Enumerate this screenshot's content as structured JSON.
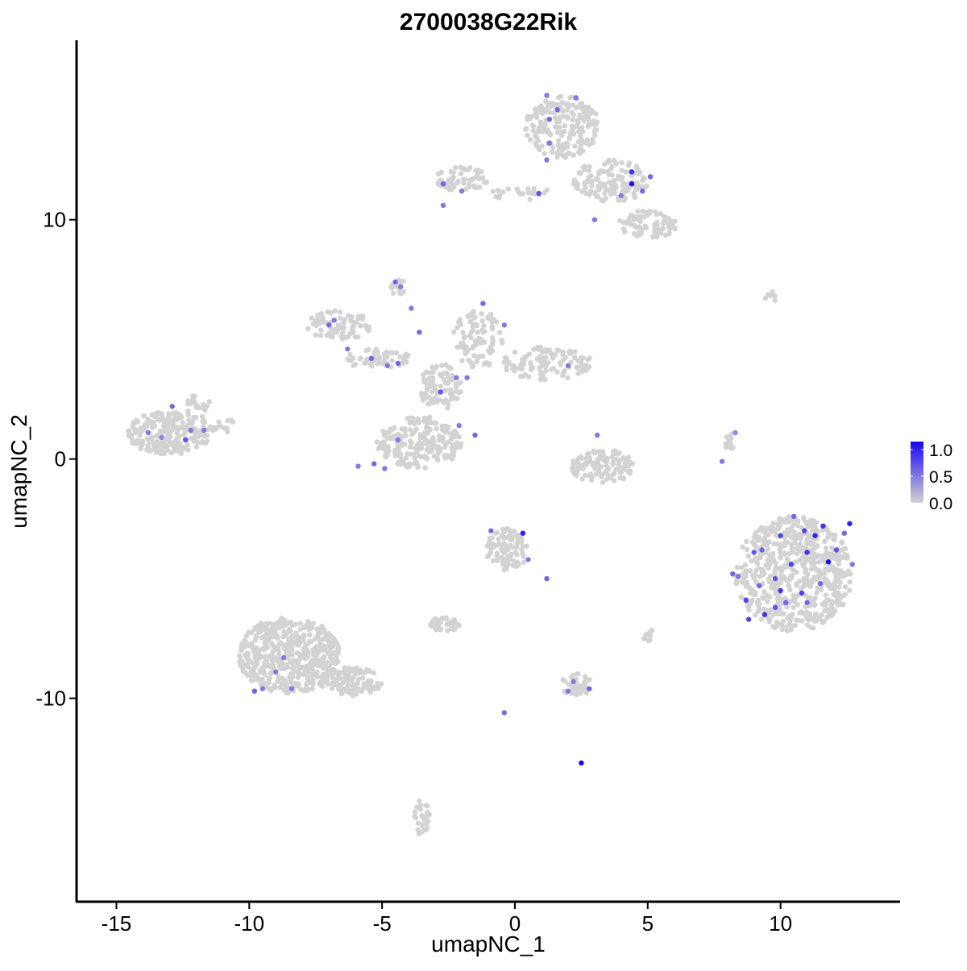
{
  "chart_data": {
    "type": "scatter",
    "title": "2700038G22Rik",
    "xlabel": "umapNC_1",
    "ylabel": "umapNC_2",
    "xlim": [
      -16.5,
      14.5
    ],
    "ylim": [
      -18.5,
      17.5
    ],
    "xticks": [
      -15,
      -10,
      -5,
      0,
      5,
      10
    ],
    "yticks": [
      -10,
      0,
      10
    ],
    "grid": false,
    "colorbar": {
      "low_color": "#d3d3d3",
      "high_color": "#1a05f5",
      "min": 0.0,
      "max": 1.15,
      "ticks": [
        0.0,
        0.5,
        1.0
      ],
      "tick_labels": [
        "0.0",
        "0.5",
        "1.0"
      ],
      "position": "right"
    },
    "clusters": [
      {
        "cx": -13.0,
        "cy": 1.1,
        "rx": 1.6,
        "ry": 0.9,
        "n": 240
      },
      {
        "cx": -11.9,
        "cy": 2.2,
        "rx": 0.5,
        "ry": 0.5,
        "n": 20
      },
      {
        "cx": -11.0,
        "cy": 1.4,
        "rx": 0.6,
        "ry": 0.3,
        "n": 12
      },
      {
        "cx": -3.6,
        "cy": 0.7,
        "rx": 1.6,
        "ry": 1.1,
        "n": 210
      },
      {
        "cx": -2.8,
        "cy": 3.0,
        "rx": 0.8,
        "ry": 1.0,
        "n": 90
      },
      {
        "cx": -5.2,
        "cy": 4.2,
        "rx": 1.3,
        "ry": 0.4,
        "n": 60
      },
      {
        "cx": -6.6,
        "cy": 5.6,
        "rx": 1.3,
        "ry": 0.6,
        "n": 80
      },
      {
        "cx": -1.4,
        "cy": 5.0,
        "rx": 1.0,
        "ry": 1.2,
        "n": 90
      },
      {
        "cx": 1.2,
        "cy": 4.0,
        "rx": 1.7,
        "ry": 0.7,
        "n": 110
      },
      {
        "cx": -4.4,
        "cy": 7.2,
        "rx": 0.3,
        "ry": 0.4,
        "n": 14
      },
      {
        "cx": 1.8,
        "cy": 13.9,
        "rx": 1.4,
        "ry": 1.3,
        "n": 200
      },
      {
        "cx": 3.6,
        "cy": 11.6,
        "rx": 1.4,
        "ry": 0.9,
        "n": 140
      },
      {
        "cx": 5.0,
        "cy": 9.8,
        "rx": 1.1,
        "ry": 0.6,
        "n": 80
      },
      {
        "cx": -2.0,
        "cy": 11.7,
        "rx": 1.0,
        "ry": 0.5,
        "n": 60
      },
      {
        "cx": 0.2,
        "cy": 11.1,
        "rx": 1.4,
        "ry": 0.3,
        "n": 25
      },
      {
        "cx": 3.3,
        "cy": -0.3,
        "rx": 1.2,
        "ry": 0.7,
        "n": 110
      },
      {
        "cx": 10.5,
        "cy": -4.8,
        "rx": 2.2,
        "ry": 2.4,
        "n": 600
      },
      {
        "cx": 8.1,
        "cy": 0.6,
        "rx": 0.2,
        "ry": 0.6,
        "n": 12
      },
      {
        "cx": -0.3,
        "cy": -3.8,
        "rx": 0.8,
        "ry": 0.9,
        "n": 90
      },
      {
        "cx": -2.6,
        "cy": -6.9,
        "rx": 0.6,
        "ry": 0.3,
        "n": 40
      },
      {
        "cx": 2.3,
        "cy": -9.4,
        "rx": 0.6,
        "ry": 0.5,
        "n": 40
      },
      {
        "cx": -8.5,
        "cy": -8.2,
        "rx": 1.9,
        "ry": 1.6,
        "n": 500
      },
      {
        "cx": -6.2,
        "cy": -9.3,
        "rx": 1.2,
        "ry": 0.6,
        "n": 120
      },
      {
        "cx": -3.5,
        "cy": -15.0,
        "rx": 0.3,
        "ry": 0.8,
        "n": 30
      },
      {
        "cx": 5.0,
        "cy": -7.3,
        "rx": 0.2,
        "ry": 0.3,
        "n": 12
      },
      {
        "cx": 9.5,
        "cy": 6.8,
        "rx": 0.6,
        "ry": 0.2,
        "n": 6
      }
    ],
    "expressing_points": [
      {
        "x": -12.9,
        "y": 2.2,
        "v": 0.6
      },
      {
        "x": -13.8,
        "y": 1.1,
        "v": 0.5
      },
      {
        "x": -12.4,
        "y": 0.8,
        "v": 0.7
      },
      {
        "x": -12.2,
        "y": 1.2,
        "v": 0.5
      },
      {
        "x": -13.3,
        "y": 0.9,
        "v": 0.4
      },
      {
        "x": -11.7,
        "y": 1.2,
        "v": 0.5
      },
      {
        "x": -4.5,
        "y": 7.4,
        "v": 0.6
      },
      {
        "x": -4.3,
        "y": 7.2,
        "v": 0.5
      },
      {
        "x": -3.9,
        "y": 6.3,
        "v": 0.5
      },
      {
        "x": -7.0,
        "y": 5.6,
        "v": 0.6
      },
      {
        "x": -6.8,
        "y": 5.8,
        "v": 0.5
      },
      {
        "x": -6.3,
        "y": 4.6,
        "v": 0.5
      },
      {
        "x": -5.4,
        "y": 4.2,
        "v": 0.6
      },
      {
        "x": -4.8,
        "y": 3.9,
        "v": 0.5
      },
      {
        "x": -4.4,
        "y": 4.0,
        "v": 0.6
      },
      {
        "x": -3.6,
        "y": 5.3,
        "v": 0.6
      },
      {
        "x": -2.8,
        "y": 2.8,
        "v": 0.7
      },
      {
        "x": -2.2,
        "y": 3.4,
        "v": 0.5
      },
      {
        "x": -1.8,
        "y": 3.4,
        "v": 0.5
      },
      {
        "x": -1.2,
        "y": 6.5,
        "v": 0.6
      },
      {
        "x": -0.4,
        "y": 5.6,
        "v": 0.5
      },
      {
        "x": 2.0,
        "y": 3.9,
        "v": 0.5
      },
      {
        "x": -1.5,
        "y": 1.0,
        "v": 0.6
      },
      {
        "x": -2.1,
        "y": 1.4,
        "v": 0.5
      },
      {
        "x": -5.9,
        "y": -0.3,
        "v": 0.5
      },
      {
        "x": -5.3,
        "y": -0.2,
        "v": 0.6
      },
      {
        "x": -4.9,
        "y": -0.4,
        "v": 0.5
      },
      {
        "x": -4.4,
        "y": 0.8,
        "v": 0.5
      },
      {
        "x": -2.7,
        "y": 11.5,
        "v": 0.6
      },
      {
        "x": -2.0,
        "y": 11.2,
        "v": 0.5
      },
      {
        "x": -2.7,
        "y": 10.6,
        "v": 0.5
      },
      {
        "x": 0.9,
        "y": 11.1,
        "v": 0.7
      },
      {
        "x": 1.3,
        "y": 14.2,
        "v": 0.6
      },
      {
        "x": 1.2,
        "y": 15.2,
        "v": 0.5
      },
      {
        "x": 1.6,
        "y": 14.6,
        "v": 0.6
      },
      {
        "x": 2.3,
        "y": 15.1,
        "v": 0.5
      },
      {
        "x": 1.3,
        "y": 13.2,
        "v": 0.5
      },
      {
        "x": 1.2,
        "y": 12.5,
        "v": 0.5
      },
      {
        "x": 4.4,
        "y": 12.0,
        "v": 0.9
      },
      {
        "x": 4.4,
        "y": 11.5,
        "v": 1.1
      },
      {
        "x": 5.1,
        "y": 11.8,
        "v": 0.6
      },
      {
        "x": 4.8,
        "y": 11.2,
        "v": 0.6
      },
      {
        "x": 4.0,
        "y": 11.0,
        "v": 0.5
      },
      {
        "x": 3.0,
        "y": 10.0,
        "v": 0.5
      },
      {
        "x": 3.1,
        "y": 1.0,
        "v": 0.5
      },
      {
        "x": 7.8,
        "y": -0.1,
        "v": 0.5
      },
      {
        "x": 8.3,
        "y": 1.1,
        "v": 0.4
      },
      {
        "x": 0.3,
        "y": -3.1,
        "v": 1.0
      },
      {
        "x": -0.9,
        "y": -3.0,
        "v": 0.6
      },
      {
        "x": 0.5,
        "y": -4.2,
        "v": 0.5
      },
      {
        "x": 1.2,
        "y": -5.0,
        "v": 0.6
      },
      {
        "x": -0.4,
        "y": -10.6,
        "v": 0.6
      },
      {
        "x": 2.5,
        "y": -12.7,
        "v": 1.15
      },
      {
        "x": 2.2,
        "y": -9.3,
        "v": 0.5
      },
      {
        "x": 2.8,
        "y": -9.6,
        "v": 0.6
      },
      {
        "x": 2.0,
        "y": -9.7,
        "v": 0.5
      },
      {
        "x": -9.0,
        "y": -8.9,
        "v": 0.5
      },
      {
        "x": -9.8,
        "y": -9.7,
        "v": 0.6
      },
      {
        "x": -9.5,
        "y": -9.6,
        "v": 0.5
      },
      {
        "x": -8.4,
        "y": -9.6,
        "v": 0.5
      },
      {
        "x": -8.7,
        "y": -8.3,
        "v": 0.5
      },
      {
        "x": 9.3,
        "y": -3.8,
        "v": 0.6
      },
      {
        "x": 9.0,
        "y": -3.9,
        "v": 0.7
      },
      {
        "x": 10.0,
        "y": -3.2,
        "v": 0.8
      },
      {
        "x": 10.9,
        "y": -3.0,
        "v": 0.8
      },
      {
        "x": 11.6,
        "y": -2.8,
        "v": 0.9
      },
      {
        "x": 11.3,
        "y": -3.2,
        "v": 1.0
      },
      {
        "x": 12.6,
        "y": -2.7,
        "v": 1.0
      },
      {
        "x": 12.4,
        "y": -3.1,
        "v": 0.6
      },
      {
        "x": 11.0,
        "y": -3.9,
        "v": 0.9
      },
      {
        "x": 10.4,
        "y": -4.4,
        "v": 0.8
      },
      {
        "x": 9.8,
        "y": -5.0,
        "v": 0.7
      },
      {
        "x": 10.0,
        "y": -5.5,
        "v": 0.9
      },
      {
        "x": 9.2,
        "y": -5.3,
        "v": 0.6
      },
      {
        "x": 10.8,
        "y": -5.6,
        "v": 0.8
      },
      {
        "x": 11.8,
        "y": -4.3,
        "v": 1.1
      },
      {
        "x": 12.1,
        "y": -3.8,
        "v": 0.7
      },
      {
        "x": 11.5,
        "y": -5.2,
        "v": 0.6
      },
      {
        "x": 9.4,
        "y": -6.5,
        "v": 0.9
      },
      {
        "x": 9.8,
        "y": -6.2,
        "v": 0.7
      },
      {
        "x": 10.2,
        "y": -6.0,
        "v": 0.6
      },
      {
        "x": 8.2,
        "y": -4.8,
        "v": 0.6
      },
      {
        "x": 8.4,
        "y": -4.9,
        "v": 0.5
      },
      {
        "x": 8.7,
        "y": -5.9,
        "v": 0.8
      },
      {
        "x": 8.8,
        "y": -6.7,
        "v": 0.8
      },
      {
        "x": 12.7,
        "y": -4.4,
        "v": 0.5
      },
      {
        "x": 11.0,
        "y": -6.0,
        "v": 0.6
      },
      {
        "x": 10.5,
        "y": -2.4,
        "v": 0.6
      }
    ]
  }
}
